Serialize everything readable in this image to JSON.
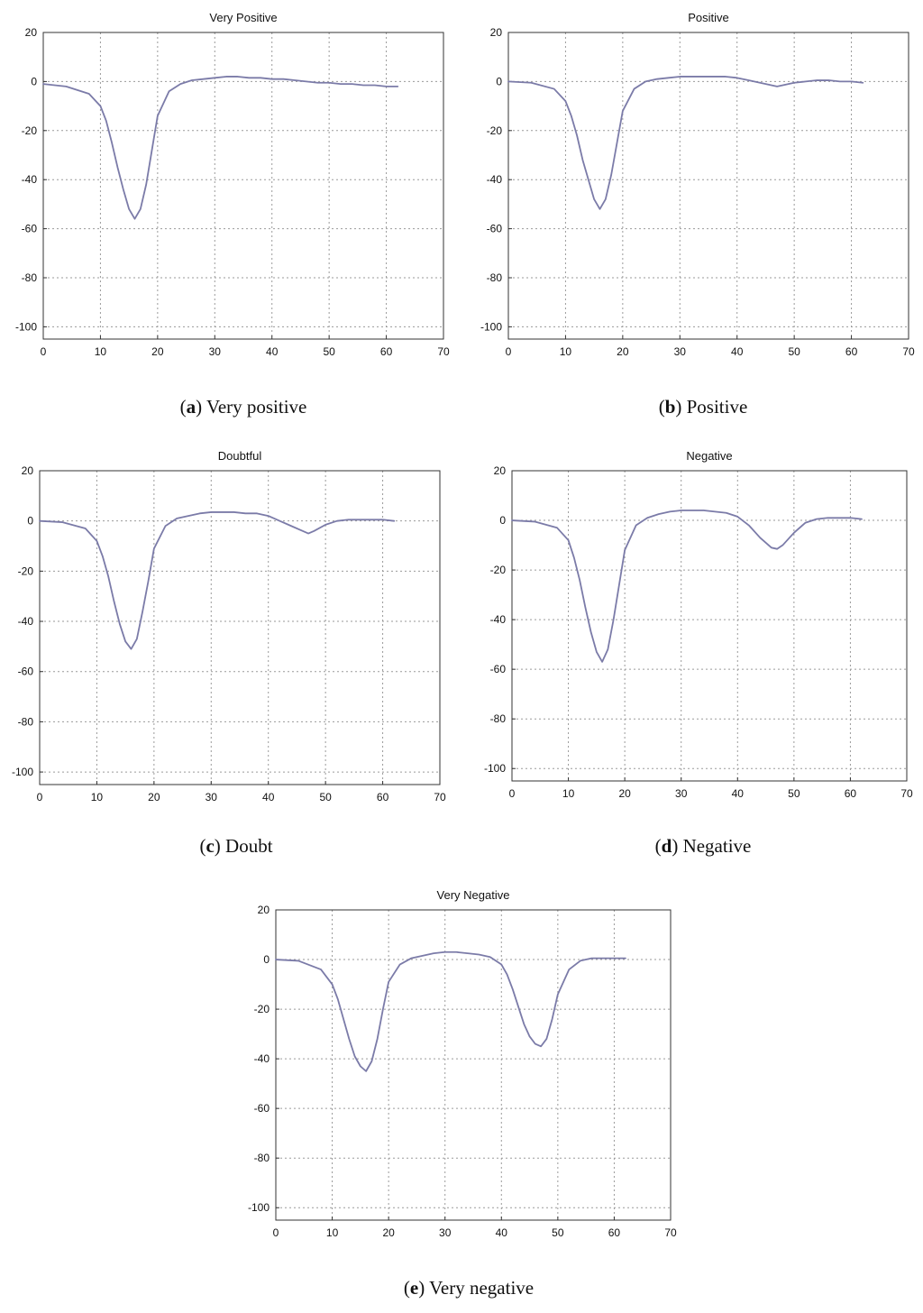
{
  "chart_data": [
    {
      "type": "line",
      "title": "Very Positive",
      "caption_letter": "a",
      "caption_text": "Very positive",
      "xlim": [
        0,
        70
      ],
      "ylim": [
        -105,
        20
      ],
      "xticks": [
        0,
        10,
        20,
        30,
        40,
        50,
        60,
        70
      ],
      "yticks": [
        20,
        0,
        -20,
        -40,
        -60,
        -80,
        -100
      ],
      "grid": true,
      "series": [
        {
          "color": "#7b7ba8",
          "x": [
            0,
            4,
            8,
            10,
            11,
            12,
            13,
            14,
            15,
            16,
            17,
            18,
            19,
            20,
            22,
            24,
            26,
            28,
            30,
            32,
            34,
            36,
            38,
            40,
            42,
            44,
            46,
            48,
            50,
            52,
            54,
            56,
            58,
            60,
            62
          ],
          "y": [
            -1,
            -2,
            -5,
            -10,
            -16,
            -25,
            -35,
            -44,
            -52,
            -56,
            -52,
            -42,
            -28,
            -14,
            -4,
            -1,
            0.5,
            1,
            1.5,
            2,
            2,
            1.5,
            1.5,
            1,
            1,
            0.5,
            0,
            -0.5,
            -0.5,
            -1,
            -1,
            -1.5,
            -1.5,
            -2,
            -2
          ]
        }
      ]
    },
    {
      "type": "line",
      "title": "Positive",
      "caption_letter": "b",
      "caption_text": "Positive",
      "xlim": [
        0,
        70
      ],
      "ylim": [
        -105,
        20
      ],
      "xticks": [
        0,
        10,
        20,
        30,
        40,
        50,
        60,
        70
      ],
      "yticks": [
        20,
        0,
        -20,
        -40,
        -60,
        -80,
        -100
      ],
      "grid": true,
      "series": [
        {
          "color": "#7b7ba8",
          "x": [
            0,
            4,
            8,
            10,
            11,
            12,
            13,
            14,
            15,
            16,
            17,
            18,
            19,
            20,
            22,
            24,
            26,
            28,
            30,
            32,
            34,
            36,
            38,
            40,
            42,
            44,
            46,
            47,
            48,
            50,
            52,
            54,
            56,
            58,
            60,
            62
          ],
          "y": [
            0,
            -0.5,
            -3,
            -8,
            -14,
            -22,
            -32,
            -40,
            -48,
            -52,
            -48,
            -38,
            -25,
            -12,
            -3,
            0,
            1,
            1.5,
            2,
            2,
            2,
            2,
            2,
            1.5,
            0.5,
            -0.5,
            -1.5,
            -2,
            -1.5,
            -0.5,
            0,
            0.5,
            0.5,
            0,
            0,
            -0.5
          ]
        }
      ]
    },
    {
      "type": "line",
      "title": "Doubtful",
      "caption_letter": "c",
      "caption_text": "Doubt",
      "xlim": [
        0,
        70
      ],
      "ylim": [
        -105,
        20
      ],
      "xticks": [
        0,
        10,
        20,
        30,
        40,
        50,
        60,
        70
      ],
      "yticks": [
        20,
        0,
        -20,
        -40,
        -60,
        -80,
        -100
      ],
      "grid": true,
      "series": [
        {
          "color": "#7b7ba8",
          "x": [
            0,
            4,
            8,
            10,
            11,
            12,
            13,
            14,
            15,
            16,
            17,
            18,
            19,
            20,
            22,
            24,
            26,
            28,
            30,
            32,
            34,
            36,
            38,
            40,
            42,
            44,
            46,
            47,
            48,
            50,
            52,
            54,
            56,
            58,
            60,
            62
          ],
          "y": [
            0,
            -0.5,
            -3,
            -8,
            -14,
            -22,
            -32,
            -41,
            -48,
            -51,
            -47,
            -36,
            -24,
            -11,
            -2,
            1,
            2,
            3,
            3.5,
            3.5,
            3.5,
            3,
            3,
            2,
            0,
            -2,
            -4,
            -5,
            -4,
            -1.5,
            0,
            0.5,
            0.5,
            0.5,
            0.5,
            0
          ]
        }
      ]
    },
    {
      "type": "line",
      "title": "Negative",
      "caption_letter": "d",
      "caption_text": "Negative",
      "xlim": [
        0,
        70
      ],
      "ylim": [
        -105,
        20
      ],
      "xticks": [
        0,
        10,
        20,
        30,
        40,
        50,
        60,
        70
      ],
      "yticks": [
        20,
        0,
        -20,
        -40,
        -60,
        -80,
        -100
      ],
      "grid": true,
      "series": [
        {
          "color": "#7b7ba8",
          "x": [
            0,
            4,
            8,
            10,
            11,
            12,
            13,
            14,
            15,
            16,
            17,
            18,
            19,
            20,
            22,
            24,
            26,
            28,
            30,
            32,
            34,
            36,
            38,
            40,
            42,
            44,
            46,
            47,
            48,
            50,
            52,
            54,
            56,
            58,
            60,
            62
          ],
          "y": [
            0,
            -0.5,
            -3,
            -8,
            -15,
            -24,
            -35,
            -45,
            -53,
            -57,
            -52,
            -40,
            -26,
            -12,
            -2,
            1,
            2.5,
            3.5,
            4,
            4,
            4,
            3.5,
            3,
            1.5,
            -2,
            -7,
            -11,
            -11.5,
            -10,
            -5,
            -1,
            0.5,
            1,
            1,
            1,
            0.5
          ]
        }
      ]
    },
    {
      "type": "line",
      "title": "Very Negative",
      "caption_letter": "e",
      "caption_text": "Very negative",
      "xlim": [
        0,
        70
      ],
      "ylim": [
        -105,
        20
      ],
      "xticks": [
        0,
        10,
        20,
        30,
        40,
        50,
        60,
        70
      ],
      "yticks": [
        20,
        0,
        -20,
        -40,
        -60,
        -80,
        -100
      ],
      "grid": true,
      "series": [
        {
          "color": "#7b7ba8",
          "x": [
            0,
            4,
            8,
            10,
            11,
            12,
            13,
            14,
            15,
            16,
            17,
            18,
            19,
            20,
            22,
            24,
            26,
            28,
            30,
            32,
            34,
            36,
            38,
            40,
            41,
            42,
            43,
            44,
            45,
            46,
            47,
            48,
            49,
            50,
            52,
            54,
            56,
            58,
            60,
            62
          ],
          "y": [
            0,
            -0.5,
            -4,
            -10,
            -16,
            -24,
            -32,
            -39,
            -43,
            -45,
            -41,
            -32,
            -20,
            -9,
            -2,
            0.5,
            1.5,
            2.5,
            3,
            3,
            2.5,
            2,
            1,
            -2,
            -6,
            -12,
            -19,
            -26,
            -31,
            -34,
            -35,
            -32,
            -24,
            -14,
            -4,
            -0.5,
            0.5,
            0.5,
            0.5,
            0.5
          ]
        }
      ]
    }
  ]
}
